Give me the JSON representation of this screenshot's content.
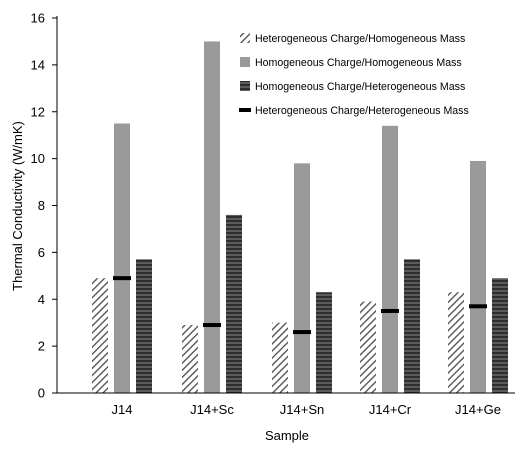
{
  "chart_data": {
    "type": "bar",
    "xlabel": "Sample",
    "ylabel": "Thermal Conductivity (W/mK)",
    "ylim": [
      0,
      16
    ],
    "yticks": [
      0,
      2,
      4,
      6,
      8,
      10,
      12,
      14,
      16
    ],
    "categories": [
      "J14",
      "J14+Sc",
      "J14+Sn",
      "J14+Cr",
      "J14+Ge"
    ],
    "grid": false,
    "legend_position": "top-right",
    "series": [
      {
        "name": "Heterogeneous Charge/Homogeneous Mass",
        "style": "diagonal-hatch",
        "color": "#5a5a5a",
        "values": [
          4.9,
          2.9,
          3.0,
          3.9,
          4.3
        ]
      },
      {
        "name": "Homogeneous Charge/Homogeneous Mass",
        "style": "solid",
        "color": "#9a9a9a",
        "values": [
          11.5,
          15.0,
          9.8,
          11.4,
          9.9
        ]
      },
      {
        "name": "Homogeneous Charge/Heterogeneous Mass",
        "style": "horizontal-hatch",
        "color": "#3a3a3a",
        "values": [
          5.7,
          7.6,
          4.3,
          5.7,
          4.9
        ]
      },
      {
        "name": "Heterogeneous Charge/Heterogeneous Mass",
        "style": "marker",
        "color": "#000000",
        "values": [
          4.9,
          2.9,
          2.6,
          3.5,
          3.7
        ]
      }
    ]
  }
}
